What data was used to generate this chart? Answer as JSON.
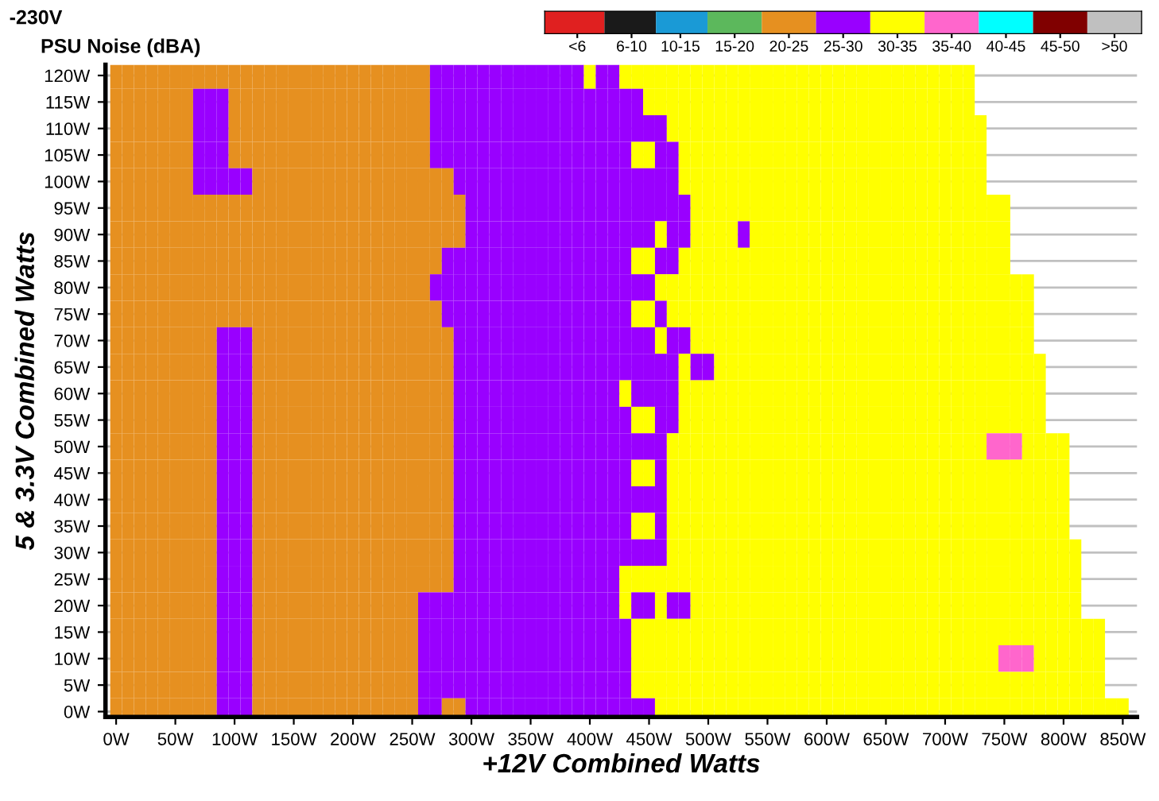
{
  "chart_data": {
    "type": "heatmap",
    "title": "-230V",
    "subtitle": "PSU Noise (dBA)",
    "xlabel": "+12V Combined Watts",
    "ylabel": "5 & 3.3V Combined Watts",
    "grid": "y",
    "colors": [
      "#e02020",
      "#1a1a1a",
      "#1a9ad6",
      "#5cb85c",
      "#e69020",
      "#9900ff",
      "#ffff00",
      "#ff66cc",
      "#00ffff",
      "#800000",
      "#c0c0c0"
    ],
    "clim": [
      0,
      55
    ],
    "cticks": [
      {
        "value": 3,
        "label": "<6"
      },
      {
        "value": 8,
        "label": "6-10"
      },
      {
        "value": 12.5,
        "label": "10-15"
      },
      {
        "value": 17.5,
        "label": "15-20"
      },
      {
        "value": 22.5,
        "label": "20-25"
      },
      {
        "value": 27.5,
        "label": "25-30"
      },
      {
        "value": 32.5,
        "label": "30-35"
      },
      {
        "value": 37.5,
        "label": "35-40"
      },
      {
        "value": 42.5,
        "label": "40-45"
      },
      {
        "value": 47.5,
        "label": "45-50"
      },
      {
        "value": 52.5,
        "label": ">50"
      }
    ],
    "xlim": [
      -9,
      862
    ],
    "ylim": [
      -1,
      122
    ],
    "xticks": [
      {
        "value": 0,
        "label": "0W"
      },
      {
        "value": 50,
        "label": "50W"
      },
      {
        "value": 100,
        "label": "100W"
      },
      {
        "value": 150,
        "label": "150W"
      },
      {
        "value": 200,
        "label": "200W"
      },
      {
        "value": 250,
        "label": "250W"
      },
      {
        "value": 300,
        "label": "300W"
      },
      {
        "value": 350,
        "label": "350W"
      },
      {
        "value": 400,
        "label": "400W"
      },
      {
        "value": 450,
        "label": "450W"
      },
      {
        "value": 500,
        "label": "500W"
      },
      {
        "value": 550,
        "label": "550W"
      },
      {
        "value": 600,
        "label": "600W"
      },
      {
        "value": 650,
        "label": "650W"
      },
      {
        "value": 700,
        "label": "700W"
      },
      {
        "value": 750,
        "label": "750W"
      },
      {
        "value": 800,
        "label": "800W"
      },
      {
        "value": 850,
        "label": "850W"
      }
    ],
    "yticks": [
      {
        "value": 0,
        "label": "0W"
      },
      {
        "value": 5,
        "label": "5W"
      },
      {
        "value": 10,
        "label": "10W"
      },
      {
        "value": 15,
        "label": "15W"
      },
      {
        "value": 20,
        "label": "20W"
      },
      {
        "value": 25,
        "label": "25W"
      },
      {
        "value": 30,
        "label": "30W"
      },
      {
        "value": 35,
        "label": "35W"
      },
      {
        "value": 40,
        "label": "40W"
      },
      {
        "value": 45,
        "label": "45W"
      },
      {
        "value": 50,
        "label": "50W"
      },
      {
        "value": 55,
        "label": "55W"
      },
      {
        "value": 60,
        "label": "60W"
      },
      {
        "value": 65,
        "label": "65W"
      },
      {
        "value": 70,
        "label": "70W"
      },
      {
        "value": 75,
        "label": "75W"
      },
      {
        "value": 80,
        "label": "80W"
      },
      {
        "value": 85,
        "label": "85W"
      },
      {
        "value": 90,
        "label": "90W"
      },
      {
        "value": 95,
        "label": "95W"
      },
      {
        "value": 100,
        "label": "100W"
      },
      {
        "value": 105,
        "label": "105W"
      },
      {
        "value": 110,
        "label": "110W"
      },
      {
        "value": 115,
        "label": "115W"
      },
      {
        "value": 120,
        "label": "120W"
      }
    ],
    "x": [
      0,
      10,
      20,
      30,
      40,
      50,
      60,
      70,
      80,
      90,
      100,
      110,
      120,
      130,
      140,
      150,
      160,
      170,
      180,
      190,
      200,
      210,
      220,
      230,
      240,
      250,
      260,
      270,
      280,
      290,
      300,
      310,
      320,
      330,
      340,
      350,
      360,
      370,
      380,
      390,
      400,
      410,
      420,
      430,
      440,
      450,
      460,
      470,
      480,
      490,
      500,
      510,
      520,
      530,
      540,
      550,
      560,
      570,
      580,
      590,
      600,
      610,
      620,
      630,
      640,
      650,
      660,
      670,
      680,
      690,
      700,
      710,
      720,
      730,
      740,
      750,
      760,
      770,
      780,
      790,
      800,
      810,
      820,
      830,
      840,
      850
    ],
    "y": [
      120,
      115,
      110,
      105,
      100,
      95,
      90,
      85,
      80,
      75,
      70,
      65,
      60,
      55,
      50,
      45,
      40,
      35,
      30,
      25,
      20,
      15,
      10,
      5,
      0
    ],
    "cells": [
      [
        22.5,
        22.5,
        22.5,
        22.5,
        22.5,
        22.5,
        22.5,
        22.5,
        22.5,
        22.5,
        22.5,
        22.5,
        22.5,
        22.5,
        22.5,
        22.5,
        22.5,
        22.5,
        22.5,
        22.5,
        22.5,
        22.5,
        22.5,
        22.5,
        22.5,
        22.5,
        22.5,
        27.5,
        27.5,
        27.5,
        27.5,
        27.5,
        27.5,
        27.5,
        27.5,
        27.5,
        27.5,
        27.5,
        27.5,
        27.5,
        32.5,
        27.5,
        27.5,
        32.5,
        32.5,
        32.5,
        32.5,
        32.5,
        32.5,
        32.5,
        32.5,
        32.5,
        32.5,
        32.5,
        32.5,
        32.5,
        32.5,
        32.5,
        32.5,
        32.5,
        32.5,
        32.5,
        32.5,
        32.5,
        32.5,
        32.5,
        32.5,
        32.5,
        32.5,
        32.5,
        32.5,
        32.5,
        32.5,
        null,
        null,
        null,
        null,
        null,
        null,
        null,
        null,
        null,
        null,
        null,
        null,
        null
      ],
      [
        22.5,
        22.5,
        22.5,
        22.5,
        22.5,
        22.5,
        22.5,
        27.5,
        27.5,
        27.5,
        22.5,
        22.5,
        22.5,
        22.5,
        22.5,
        22.5,
        22.5,
        22.5,
        22.5,
        22.5,
        22.5,
        22.5,
        22.5,
        22.5,
        22.5,
        22.5,
        22.5,
        27.5,
        27.5,
        27.5,
        27.5,
        27.5,
        27.5,
        27.5,
        27.5,
        27.5,
        27.5,
        27.5,
        27.5,
        27.5,
        27.5,
        27.5,
        27.5,
        27.5,
        27.5,
        32.5,
        32.5,
        32.5,
        32.5,
        32.5,
        32.5,
        32.5,
        32.5,
        32.5,
        32.5,
        32.5,
        32.5,
        32.5,
        32.5,
        32.5,
        32.5,
        32.5,
        32.5,
        32.5,
        32.5,
        32.5,
        32.5,
        32.5,
        32.5,
        32.5,
        32.5,
        32.5,
        32.5,
        null,
        null,
        null,
        null,
        null,
        null,
        null,
        null,
        null,
        null,
        null,
        null,
        null
      ],
      [
        22.5,
        22.5,
        22.5,
        22.5,
        22.5,
        22.5,
        22.5,
        27.5,
        27.5,
        27.5,
        22.5,
        22.5,
        22.5,
        22.5,
        22.5,
        22.5,
        22.5,
        22.5,
        22.5,
        22.5,
        22.5,
        22.5,
        22.5,
        22.5,
        22.5,
        22.5,
        22.5,
        27.5,
        27.5,
        27.5,
        27.5,
        27.5,
        27.5,
        27.5,
        27.5,
        27.5,
        27.5,
        27.5,
        27.5,
        27.5,
        27.5,
        27.5,
        27.5,
        27.5,
        27.5,
        27.5,
        27.5,
        32.5,
        32.5,
        32.5,
        32.5,
        32.5,
        32.5,
        32.5,
        32.5,
        32.5,
        32.5,
        32.5,
        32.5,
        32.5,
        32.5,
        32.5,
        32.5,
        32.5,
        32.5,
        32.5,
        32.5,
        32.5,
        32.5,
        32.5,
        32.5,
        32.5,
        32.5,
        32.5,
        null,
        null,
        null,
        null,
        null,
        null,
        null,
        null,
        null,
        null,
        null,
        null
      ],
      [
        22.5,
        22.5,
        22.5,
        22.5,
        22.5,
        22.5,
        22.5,
        27.5,
        27.5,
        27.5,
        22.5,
        22.5,
        22.5,
        22.5,
        22.5,
        22.5,
        22.5,
        22.5,
        22.5,
        22.5,
        22.5,
        22.5,
        22.5,
        22.5,
        22.5,
        22.5,
        22.5,
        27.5,
        27.5,
        27.5,
        27.5,
        27.5,
        27.5,
        27.5,
        27.5,
        27.5,
        27.5,
        27.5,
        27.5,
        27.5,
        27.5,
        27.5,
        27.5,
        27.5,
        32.5,
        32.5,
        27.5,
        27.5,
        32.5,
        32.5,
        32.5,
        32.5,
        32.5,
        32.5,
        32.5,
        32.5,
        32.5,
        32.5,
        32.5,
        32.5,
        32.5,
        32.5,
        32.5,
        32.5,
        32.5,
        32.5,
        32.5,
        32.5,
        32.5,
        32.5,
        32.5,
        32.5,
        32.5,
        32.5,
        null,
        null,
        null,
        null,
        null,
        null,
        null,
        null,
        null,
        null,
        null,
        null
      ],
      [
        22.5,
        22.5,
        22.5,
        22.5,
        22.5,
        22.5,
        22.5,
        27.5,
        27.5,
        27.5,
        27.5,
        27.5,
        22.5,
        22.5,
        22.5,
        22.5,
        22.5,
        22.5,
        22.5,
        22.5,
        22.5,
        22.5,
        22.5,
        22.5,
        22.5,
        22.5,
        22.5,
        22.5,
        22.5,
        27.5,
        27.5,
        27.5,
        27.5,
        27.5,
        27.5,
        27.5,
        27.5,
        27.5,
        27.5,
        27.5,
        27.5,
        27.5,
        27.5,
        27.5,
        27.5,
        27.5,
        27.5,
        27.5,
        32.5,
        32.5,
        32.5,
        32.5,
        32.5,
        32.5,
        32.5,
        32.5,
        32.5,
        32.5,
        32.5,
        32.5,
        32.5,
        32.5,
        32.5,
        32.5,
        32.5,
        32.5,
        32.5,
        32.5,
        32.5,
        32.5,
        32.5,
        32.5,
        32.5,
        32.5,
        null,
        null,
        null,
        null,
        null,
        null,
        null,
        null,
        null,
        null,
        null,
        null
      ],
      [
        22.5,
        22.5,
        22.5,
        22.5,
        22.5,
        22.5,
        22.5,
        22.5,
        22.5,
        22.5,
        22.5,
        22.5,
        22.5,
        22.5,
        22.5,
        22.5,
        22.5,
        22.5,
        22.5,
        22.5,
        22.5,
        22.5,
        22.5,
        22.5,
        22.5,
        22.5,
        22.5,
        22.5,
        22.5,
        22.5,
        27.5,
        27.5,
        27.5,
        27.5,
        27.5,
        27.5,
        27.5,
        27.5,
        27.5,
        27.5,
        27.5,
        27.5,
        27.5,
        27.5,
        27.5,
        27.5,
        27.5,
        27.5,
        27.5,
        32.5,
        32.5,
        32.5,
        32.5,
        32.5,
        32.5,
        32.5,
        32.5,
        32.5,
        32.5,
        32.5,
        32.5,
        32.5,
        32.5,
        32.5,
        32.5,
        32.5,
        32.5,
        32.5,
        32.5,
        32.5,
        32.5,
        32.5,
        32.5,
        32.5,
        32.5,
        32.5,
        null,
        null,
        null,
        null,
        null,
        null,
        null,
        null,
        null,
        null
      ],
      [
        22.5,
        22.5,
        22.5,
        22.5,
        22.5,
        22.5,
        22.5,
        22.5,
        22.5,
        22.5,
        22.5,
        22.5,
        22.5,
        22.5,
        22.5,
        22.5,
        22.5,
        22.5,
        22.5,
        22.5,
        22.5,
        22.5,
        22.5,
        22.5,
        22.5,
        22.5,
        22.5,
        22.5,
        22.5,
        22.5,
        27.5,
        27.5,
        27.5,
        27.5,
        27.5,
        27.5,
        27.5,
        27.5,
        27.5,
        27.5,
        27.5,
        27.5,
        27.5,
        27.5,
        27.5,
        27.5,
        32.5,
        27.5,
        27.5,
        32.5,
        32.5,
        32.5,
        32.5,
        27.5,
        32.5,
        32.5,
        32.5,
        32.5,
        32.5,
        32.5,
        32.5,
        32.5,
        32.5,
        32.5,
        32.5,
        32.5,
        32.5,
        32.5,
        32.5,
        32.5,
        32.5,
        32.5,
        32.5,
        32.5,
        32.5,
        32.5,
        null,
        null,
        null,
        null,
        null,
        null,
        null,
        null,
        null,
        null
      ],
      [
        22.5,
        22.5,
        22.5,
        22.5,
        22.5,
        22.5,
        22.5,
        22.5,
        22.5,
        22.5,
        22.5,
        22.5,
        22.5,
        22.5,
        22.5,
        22.5,
        22.5,
        22.5,
        22.5,
        22.5,
        22.5,
        22.5,
        22.5,
        22.5,
        22.5,
        22.5,
        22.5,
        22.5,
        27.5,
        27.5,
        27.5,
        27.5,
        27.5,
        27.5,
        27.5,
        27.5,
        27.5,
        27.5,
        27.5,
        27.5,
        27.5,
        27.5,
        27.5,
        27.5,
        32.5,
        32.5,
        27.5,
        27.5,
        32.5,
        32.5,
        32.5,
        32.5,
        32.5,
        32.5,
        32.5,
        32.5,
        32.5,
        32.5,
        32.5,
        32.5,
        32.5,
        32.5,
        32.5,
        32.5,
        32.5,
        32.5,
        32.5,
        32.5,
        32.5,
        32.5,
        32.5,
        32.5,
        32.5,
        32.5,
        32.5,
        32.5,
        null,
        null,
        null,
        null,
        null,
        null,
        null,
        null,
        null,
        null
      ],
      [
        22.5,
        22.5,
        22.5,
        22.5,
        22.5,
        22.5,
        22.5,
        22.5,
        22.5,
        22.5,
        22.5,
        22.5,
        22.5,
        22.5,
        22.5,
        22.5,
        22.5,
        22.5,
        22.5,
        22.5,
        22.5,
        22.5,
        22.5,
        22.5,
        22.5,
        22.5,
        22.5,
        27.5,
        27.5,
        27.5,
        27.5,
        27.5,
        27.5,
        27.5,
        27.5,
        27.5,
        27.5,
        27.5,
        27.5,
        27.5,
        27.5,
        27.5,
        27.5,
        27.5,
        27.5,
        27.5,
        32.5,
        32.5,
        32.5,
        32.5,
        32.5,
        32.5,
        32.5,
        32.5,
        32.5,
        32.5,
        32.5,
        32.5,
        32.5,
        32.5,
        32.5,
        32.5,
        32.5,
        32.5,
        32.5,
        32.5,
        32.5,
        32.5,
        32.5,
        32.5,
        32.5,
        32.5,
        32.5,
        32.5,
        32.5,
        32.5,
        32.5,
        32.5,
        null,
        null,
        null,
        null,
        null,
        null,
        null,
        null
      ],
      [
        22.5,
        22.5,
        22.5,
        22.5,
        22.5,
        22.5,
        22.5,
        22.5,
        22.5,
        22.5,
        22.5,
        22.5,
        22.5,
        22.5,
        22.5,
        22.5,
        22.5,
        22.5,
        22.5,
        22.5,
        22.5,
        22.5,
        22.5,
        22.5,
        22.5,
        22.5,
        22.5,
        22.5,
        27.5,
        27.5,
        27.5,
        27.5,
        27.5,
        27.5,
        27.5,
        27.5,
        27.5,
        27.5,
        27.5,
        27.5,
        27.5,
        27.5,
        27.5,
        27.5,
        32.5,
        32.5,
        27.5,
        32.5,
        32.5,
        32.5,
        32.5,
        32.5,
        32.5,
        32.5,
        32.5,
        32.5,
        32.5,
        32.5,
        32.5,
        32.5,
        32.5,
        32.5,
        32.5,
        32.5,
        32.5,
        32.5,
        32.5,
        32.5,
        32.5,
        32.5,
        32.5,
        32.5,
        32.5,
        32.5,
        32.5,
        32.5,
        32.5,
        32.5,
        null,
        null,
        null,
        null,
        null,
        null,
        null,
        null
      ],
      [
        22.5,
        22.5,
        22.5,
        22.5,
        22.5,
        22.5,
        22.5,
        22.5,
        22.5,
        27.5,
        27.5,
        27.5,
        22.5,
        22.5,
        22.5,
        22.5,
        22.5,
        22.5,
        22.5,
        22.5,
        22.5,
        22.5,
        22.5,
        22.5,
        22.5,
        22.5,
        22.5,
        22.5,
        22.5,
        27.5,
        27.5,
        27.5,
        27.5,
        27.5,
        27.5,
        27.5,
        27.5,
        27.5,
        27.5,
        27.5,
        27.5,
        27.5,
        27.5,
        27.5,
        27.5,
        27.5,
        32.5,
        27.5,
        27.5,
        32.5,
        32.5,
        32.5,
        32.5,
        32.5,
        32.5,
        32.5,
        32.5,
        32.5,
        32.5,
        32.5,
        32.5,
        32.5,
        32.5,
        32.5,
        32.5,
        32.5,
        32.5,
        32.5,
        32.5,
        32.5,
        32.5,
        32.5,
        32.5,
        32.5,
        32.5,
        32.5,
        32.5,
        32.5,
        null,
        null,
        null,
        null,
        null,
        null,
        null,
        null
      ],
      [
        22.5,
        22.5,
        22.5,
        22.5,
        22.5,
        22.5,
        22.5,
        22.5,
        22.5,
        27.5,
        27.5,
        27.5,
        22.5,
        22.5,
        22.5,
        22.5,
        22.5,
        22.5,
        22.5,
        22.5,
        22.5,
        22.5,
        22.5,
        22.5,
        22.5,
        22.5,
        22.5,
        22.5,
        22.5,
        27.5,
        27.5,
        27.5,
        27.5,
        27.5,
        27.5,
        27.5,
        27.5,
        27.5,
        27.5,
        27.5,
        27.5,
        27.5,
        27.5,
        27.5,
        27.5,
        27.5,
        27.5,
        27.5,
        32.5,
        27.5,
        27.5,
        32.5,
        32.5,
        32.5,
        32.5,
        32.5,
        32.5,
        32.5,
        32.5,
        32.5,
        32.5,
        32.5,
        32.5,
        32.5,
        32.5,
        32.5,
        32.5,
        32.5,
        32.5,
        32.5,
        32.5,
        32.5,
        32.5,
        32.5,
        32.5,
        32.5,
        32.5,
        32.5,
        32.5,
        null,
        null,
        null,
        null,
        null,
        null,
        null
      ],
      [
        22.5,
        22.5,
        22.5,
        22.5,
        22.5,
        22.5,
        22.5,
        22.5,
        22.5,
        27.5,
        27.5,
        27.5,
        22.5,
        22.5,
        22.5,
        22.5,
        22.5,
        22.5,
        22.5,
        22.5,
        22.5,
        22.5,
        22.5,
        22.5,
        22.5,
        22.5,
        22.5,
        22.5,
        22.5,
        27.5,
        27.5,
        27.5,
        27.5,
        27.5,
        27.5,
        27.5,
        27.5,
        27.5,
        27.5,
        27.5,
        27.5,
        27.5,
        27.5,
        32.5,
        27.5,
        27.5,
        27.5,
        27.5,
        32.5,
        32.5,
        32.5,
        32.5,
        32.5,
        32.5,
        32.5,
        32.5,
        32.5,
        32.5,
        32.5,
        32.5,
        32.5,
        32.5,
        32.5,
        32.5,
        32.5,
        32.5,
        32.5,
        32.5,
        32.5,
        32.5,
        32.5,
        32.5,
        32.5,
        32.5,
        32.5,
        32.5,
        32.5,
        32.5,
        32.5,
        null,
        null,
        null,
        null,
        null,
        null,
        null
      ],
      [
        22.5,
        22.5,
        22.5,
        22.5,
        22.5,
        22.5,
        22.5,
        22.5,
        22.5,
        27.5,
        27.5,
        27.5,
        22.5,
        22.5,
        22.5,
        22.5,
        22.5,
        22.5,
        22.5,
        22.5,
        22.5,
        22.5,
        22.5,
        22.5,
        22.5,
        22.5,
        22.5,
        22.5,
        22.5,
        27.5,
        27.5,
        27.5,
        27.5,
        27.5,
        27.5,
        27.5,
        27.5,
        27.5,
        27.5,
        27.5,
        27.5,
        27.5,
        27.5,
        27.5,
        32.5,
        32.5,
        27.5,
        27.5,
        32.5,
        32.5,
        32.5,
        32.5,
        32.5,
        32.5,
        32.5,
        32.5,
        32.5,
        32.5,
        32.5,
        32.5,
        32.5,
        32.5,
        32.5,
        32.5,
        32.5,
        32.5,
        32.5,
        32.5,
        32.5,
        32.5,
        32.5,
        32.5,
        32.5,
        32.5,
        32.5,
        32.5,
        32.5,
        32.5,
        32.5,
        null,
        null,
        null,
        null,
        null,
        null,
        null
      ],
      [
        22.5,
        22.5,
        22.5,
        22.5,
        22.5,
        22.5,
        22.5,
        22.5,
        22.5,
        27.5,
        27.5,
        27.5,
        22.5,
        22.5,
        22.5,
        22.5,
        22.5,
        22.5,
        22.5,
        22.5,
        22.5,
        22.5,
        22.5,
        22.5,
        22.5,
        22.5,
        22.5,
        22.5,
        22.5,
        27.5,
        27.5,
        27.5,
        27.5,
        27.5,
        27.5,
        27.5,
        27.5,
        27.5,
        27.5,
        27.5,
        27.5,
        27.5,
        27.5,
        27.5,
        27.5,
        27.5,
        27.5,
        32.5,
        32.5,
        32.5,
        32.5,
        32.5,
        32.5,
        32.5,
        32.5,
        32.5,
        32.5,
        32.5,
        32.5,
        32.5,
        32.5,
        32.5,
        32.5,
        32.5,
        32.5,
        32.5,
        32.5,
        32.5,
        32.5,
        32.5,
        32.5,
        32.5,
        32.5,
        32.5,
        37.5,
        37.5,
        37.5,
        32.5,
        32.5,
        32.5,
        32.5,
        null,
        null,
        null,
        null,
        null
      ],
      [
        22.5,
        22.5,
        22.5,
        22.5,
        22.5,
        22.5,
        22.5,
        22.5,
        22.5,
        27.5,
        27.5,
        27.5,
        22.5,
        22.5,
        22.5,
        22.5,
        22.5,
        22.5,
        22.5,
        22.5,
        22.5,
        22.5,
        22.5,
        22.5,
        22.5,
        22.5,
        22.5,
        22.5,
        22.5,
        27.5,
        27.5,
        27.5,
        27.5,
        27.5,
        27.5,
        27.5,
        27.5,
        27.5,
        27.5,
        27.5,
        27.5,
        27.5,
        27.5,
        27.5,
        32.5,
        32.5,
        27.5,
        32.5,
        32.5,
        32.5,
        32.5,
        32.5,
        32.5,
        32.5,
        32.5,
        32.5,
        32.5,
        32.5,
        32.5,
        32.5,
        32.5,
        32.5,
        32.5,
        32.5,
        32.5,
        32.5,
        32.5,
        32.5,
        32.5,
        32.5,
        32.5,
        32.5,
        32.5,
        32.5,
        32.5,
        32.5,
        32.5,
        32.5,
        32.5,
        32.5,
        32.5,
        null,
        null,
        null,
        null,
        null
      ],
      [
        22.5,
        22.5,
        22.5,
        22.5,
        22.5,
        22.5,
        22.5,
        22.5,
        22.5,
        27.5,
        27.5,
        27.5,
        22.5,
        22.5,
        22.5,
        22.5,
        22.5,
        22.5,
        22.5,
        22.5,
        22.5,
        22.5,
        22.5,
        22.5,
        22.5,
        22.5,
        22.5,
        22.5,
        22.5,
        27.5,
        27.5,
        27.5,
        27.5,
        27.5,
        27.5,
        27.5,
        27.5,
        27.5,
        27.5,
        27.5,
        27.5,
        27.5,
        27.5,
        27.5,
        27.5,
        27.5,
        27.5,
        32.5,
        32.5,
        32.5,
        32.5,
        32.5,
        32.5,
        32.5,
        32.5,
        32.5,
        32.5,
        32.5,
        32.5,
        32.5,
        32.5,
        32.5,
        32.5,
        32.5,
        32.5,
        32.5,
        32.5,
        32.5,
        32.5,
        32.5,
        32.5,
        32.5,
        32.5,
        32.5,
        32.5,
        32.5,
        32.5,
        32.5,
        32.5,
        32.5,
        32.5,
        null,
        null,
        null,
        null,
        null
      ],
      [
        22.5,
        22.5,
        22.5,
        22.5,
        22.5,
        22.5,
        22.5,
        22.5,
        22.5,
        27.5,
        27.5,
        27.5,
        22.5,
        22.5,
        22.5,
        22.5,
        22.5,
        22.5,
        22.5,
        22.5,
        22.5,
        22.5,
        22.5,
        22.5,
        22.5,
        22.5,
        22.5,
        22.5,
        22.5,
        27.5,
        27.5,
        27.5,
        27.5,
        27.5,
        27.5,
        27.5,
        27.5,
        27.5,
        27.5,
        27.5,
        27.5,
        27.5,
        27.5,
        27.5,
        32.5,
        32.5,
        27.5,
        32.5,
        32.5,
        32.5,
        32.5,
        32.5,
        32.5,
        32.5,
        32.5,
        32.5,
        32.5,
        32.5,
        32.5,
        32.5,
        32.5,
        32.5,
        32.5,
        32.5,
        32.5,
        32.5,
        32.5,
        32.5,
        32.5,
        32.5,
        32.5,
        32.5,
        32.5,
        32.5,
        32.5,
        32.5,
        32.5,
        32.5,
        32.5,
        32.5,
        32.5,
        null,
        null,
        null,
        null,
        null
      ],
      [
        22.5,
        22.5,
        22.5,
        22.5,
        22.5,
        22.5,
        22.5,
        22.5,
        22.5,
        27.5,
        27.5,
        27.5,
        22.5,
        22.5,
        22.5,
        22.5,
        22.5,
        22.5,
        22.5,
        22.5,
        22.5,
        22.5,
        22.5,
        22.5,
        22.5,
        22.5,
        22.5,
        22.5,
        22.5,
        27.5,
        27.5,
        27.5,
        27.5,
        27.5,
        27.5,
        27.5,
        27.5,
        27.5,
        27.5,
        27.5,
        27.5,
        27.5,
        27.5,
        27.5,
        27.5,
        27.5,
        27.5,
        32.5,
        32.5,
        32.5,
        32.5,
        32.5,
        32.5,
        32.5,
        32.5,
        32.5,
        32.5,
        32.5,
        32.5,
        32.5,
        32.5,
        32.5,
        32.5,
        32.5,
        32.5,
        32.5,
        32.5,
        32.5,
        32.5,
        32.5,
        32.5,
        32.5,
        32.5,
        32.5,
        32.5,
        32.5,
        32.5,
        32.5,
        32.5,
        32.5,
        32.5,
        32.5,
        null,
        null,
        null,
        null
      ],
      [
        22.5,
        22.5,
        22.5,
        22.5,
        22.5,
        22.5,
        22.5,
        22.5,
        22.5,
        27.5,
        27.5,
        27.5,
        22.5,
        22.5,
        22.5,
        22.5,
        22.5,
        22.5,
        22.5,
        22.5,
        22.5,
        22.5,
        22.5,
        22.5,
        22.5,
        22.5,
        22.5,
        22.5,
        22.5,
        27.5,
        27.5,
        27.5,
        27.5,
        27.5,
        27.5,
        27.5,
        27.5,
        27.5,
        27.5,
        27.5,
        27.5,
        27.5,
        27.5,
        32.5,
        32.5,
        32.5,
        32.5,
        32.5,
        32.5,
        32.5,
        32.5,
        32.5,
        32.5,
        32.5,
        32.5,
        32.5,
        32.5,
        32.5,
        32.5,
        32.5,
        32.5,
        32.5,
        32.5,
        32.5,
        32.5,
        32.5,
        32.5,
        32.5,
        32.5,
        32.5,
        32.5,
        32.5,
        32.5,
        32.5,
        32.5,
        32.5,
        32.5,
        32.5,
        32.5,
        32.5,
        32.5,
        32.5,
        null,
        null,
        null,
        null
      ],
      [
        22.5,
        22.5,
        22.5,
        22.5,
        22.5,
        22.5,
        22.5,
        22.5,
        22.5,
        27.5,
        27.5,
        27.5,
        22.5,
        22.5,
        22.5,
        22.5,
        22.5,
        22.5,
        22.5,
        22.5,
        22.5,
        22.5,
        22.5,
        22.5,
        22.5,
        22.5,
        27.5,
        27.5,
        27.5,
        27.5,
        27.5,
        27.5,
        27.5,
        27.5,
        27.5,
        27.5,
        27.5,
        27.5,
        27.5,
        27.5,
        27.5,
        27.5,
        27.5,
        32.5,
        27.5,
        27.5,
        32.5,
        27.5,
        27.5,
        32.5,
        32.5,
        32.5,
        32.5,
        32.5,
        32.5,
        32.5,
        32.5,
        32.5,
        32.5,
        32.5,
        32.5,
        32.5,
        32.5,
        32.5,
        32.5,
        32.5,
        32.5,
        32.5,
        32.5,
        32.5,
        32.5,
        32.5,
        32.5,
        32.5,
        32.5,
        32.5,
        32.5,
        32.5,
        32.5,
        32.5,
        32.5,
        32.5,
        null,
        null,
        null,
        null
      ],
      [
        22.5,
        22.5,
        22.5,
        22.5,
        22.5,
        22.5,
        22.5,
        22.5,
        22.5,
        27.5,
        27.5,
        27.5,
        22.5,
        22.5,
        22.5,
        22.5,
        22.5,
        22.5,
        22.5,
        22.5,
        22.5,
        22.5,
        22.5,
        22.5,
        22.5,
        22.5,
        27.5,
        27.5,
        27.5,
        27.5,
        27.5,
        27.5,
        27.5,
        27.5,
        27.5,
        27.5,
        27.5,
        27.5,
        27.5,
        27.5,
        27.5,
        27.5,
        27.5,
        27.5,
        32.5,
        32.5,
        32.5,
        32.5,
        32.5,
        32.5,
        32.5,
        32.5,
        32.5,
        32.5,
        32.5,
        32.5,
        32.5,
        32.5,
        32.5,
        32.5,
        32.5,
        32.5,
        32.5,
        32.5,
        32.5,
        32.5,
        32.5,
        32.5,
        32.5,
        32.5,
        32.5,
        32.5,
        32.5,
        32.5,
        32.5,
        32.5,
        32.5,
        32.5,
        32.5,
        32.5,
        32.5,
        32.5,
        32.5,
        32.5,
        null,
        null
      ],
      [
        22.5,
        22.5,
        22.5,
        22.5,
        22.5,
        22.5,
        22.5,
        22.5,
        22.5,
        27.5,
        27.5,
        27.5,
        22.5,
        22.5,
        22.5,
        22.5,
        22.5,
        22.5,
        22.5,
        22.5,
        22.5,
        22.5,
        22.5,
        22.5,
        22.5,
        22.5,
        27.5,
        27.5,
        27.5,
        27.5,
        27.5,
        27.5,
        27.5,
        27.5,
        27.5,
        27.5,
        27.5,
        27.5,
        27.5,
        27.5,
        27.5,
        27.5,
        27.5,
        27.5,
        32.5,
        32.5,
        32.5,
        32.5,
        32.5,
        32.5,
        32.5,
        32.5,
        32.5,
        32.5,
        32.5,
        32.5,
        32.5,
        32.5,
        32.5,
        32.5,
        32.5,
        32.5,
        32.5,
        32.5,
        32.5,
        32.5,
        32.5,
        32.5,
        32.5,
        32.5,
        32.5,
        32.5,
        32.5,
        32.5,
        32.5,
        37.5,
        37.5,
        37.5,
        32.5,
        32.5,
        32.5,
        32.5,
        32.5,
        32.5,
        null,
        null
      ],
      [
        22.5,
        22.5,
        22.5,
        22.5,
        22.5,
        22.5,
        22.5,
        22.5,
        22.5,
        27.5,
        27.5,
        27.5,
        22.5,
        22.5,
        22.5,
        22.5,
        22.5,
        22.5,
        22.5,
        22.5,
        22.5,
        22.5,
        22.5,
        22.5,
        22.5,
        22.5,
        27.5,
        27.5,
        27.5,
        27.5,
        27.5,
        27.5,
        27.5,
        27.5,
        27.5,
        27.5,
        27.5,
        27.5,
        27.5,
        27.5,
        27.5,
        27.5,
        27.5,
        27.5,
        32.5,
        32.5,
        32.5,
        32.5,
        32.5,
        32.5,
        32.5,
        32.5,
        32.5,
        32.5,
        32.5,
        32.5,
        32.5,
        32.5,
        32.5,
        32.5,
        32.5,
        32.5,
        32.5,
        32.5,
        32.5,
        32.5,
        32.5,
        32.5,
        32.5,
        32.5,
        32.5,
        32.5,
        32.5,
        32.5,
        32.5,
        32.5,
        32.5,
        32.5,
        32.5,
        32.5,
        32.5,
        32.5,
        32.5,
        32.5,
        null,
        null
      ],
      [
        22.5,
        22.5,
        22.5,
        22.5,
        22.5,
        22.5,
        22.5,
        22.5,
        22.5,
        27.5,
        27.5,
        27.5,
        22.5,
        22.5,
        22.5,
        22.5,
        22.5,
        22.5,
        22.5,
        22.5,
        22.5,
        22.5,
        22.5,
        22.5,
        22.5,
        22.5,
        27.5,
        27.5,
        22.5,
        22.5,
        27.5,
        27.5,
        27.5,
        27.5,
        27.5,
        27.5,
        27.5,
        27.5,
        27.5,
        27.5,
        27.5,
        27.5,
        27.5,
        27.5,
        27.5,
        27.5,
        32.5,
        32.5,
        32.5,
        32.5,
        32.5,
        32.5,
        32.5,
        32.5,
        32.5,
        32.5,
        32.5,
        32.5,
        32.5,
        32.5,
        32.5,
        32.5,
        32.5,
        32.5,
        32.5,
        32.5,
        32.5,
        32.5,
        32.5,
        32.5,
        32.5,
        32.5,
        32.5,
        32.5,
        32.5,
        32.5,
        32.5,
        32.5,
        32.5,
        32.5,
        32.5,
        32.5,
        32.5,
        32.5,
        32.5,
        32.5
      ]
    ]
  }
}
